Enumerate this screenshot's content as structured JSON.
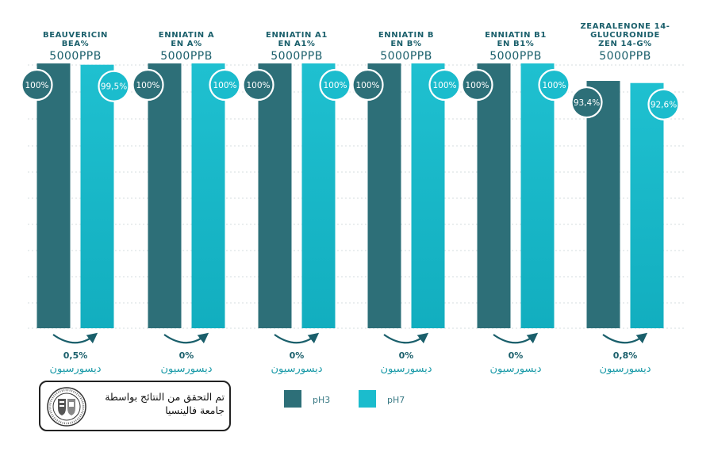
{
  "chart_data": {
    "type": "bar",
    "ylim": [
      0,
      100
    ],
    "grid": true,
    "legend_position": "bottom",
    "colors": {
      "pH3": "#2d6f78",
      "pH7": "#1bbccd"
    },
    "categories": [
      {
        "title_lines": [
          "BEAUVERICIN",
          "BEA%"
        ],
        "concentration": "5000PPB",
        "pH3": 100,
        "pH7": 99.5,
        "pH3_label": "100%",
        "pH7_label": "99,5%",
        "reduction": "0,5%",
        "reduction_label": "ديسورسيون"
      },
      {
        "title_lines": [
          "ENNIATIN A",
          "EN A%"
        ],
        "concentration": "5000PPB",
        "pH3": 100,
        "pH7": 100,
        "pH3_label": "100%",
        "pH7_label": "100%",
        "reduction": "0%",
        "reduction_label": "ديسورسيون"
      },
      {
        "title_lines": [
          "ENNIATIN A1",
          "EN A1%"
        ],
        "concentration": "5000PPB",
        "pH3": 100,
        "pH7": 100,
        "pH3_label": "100%",
        "pH7_label": "100%",
        "reduction": "0%",
        "reduction_label": "ديسورسيون"
      },
      {
        "title_lines": [
          "ENNIATIN B",
          "EN B%"
        ],
        "concentration": "5000PPB",
        "pH3": 100,
        "pH7": 100,
        "pH3_label": "100%",
        "pH7_label": "100%",
        "reduction": "0%",
        "reduction_label": "ديسورسيون"
      },
      {
        "title_lines": [
          "ENNIATIN B1",
          "EN B1%"
        ],
        "concentration": "5000PPB",
        "pH3": 100,
        "pH7": 100,
        "pH3_label": "100%",
        "pH7_label": "100%",
        "reduction": "0%",
        "reduction_label": "ديسورسيون"
      },
      {
        "title_lines": [
          "ZEARALENONE 14-",
          "GLUCURONIDE",
          "ZEN 14-G%"
        ],
        "concentration": "5000PPB",
        "pH3": 93.4,
        "pH7": 92.6,
        "pH3_label": "93,4%",
        "pH7_label": "92,6%",
        "reduction": "0,8%",
        "reduction_label": "ديسورسيون"
      }
    ],
    "legend": [
      {
        "name": "pH3",
        "color": "#2d6f78"
      },
      {
        "name": "pH7",
        "color": "#1bbccd"
      }
    ]
  },
  "verification": {
    "text": "تم التحقق من النتائج بواسطة جامعة فالينسيا"
  }
}
